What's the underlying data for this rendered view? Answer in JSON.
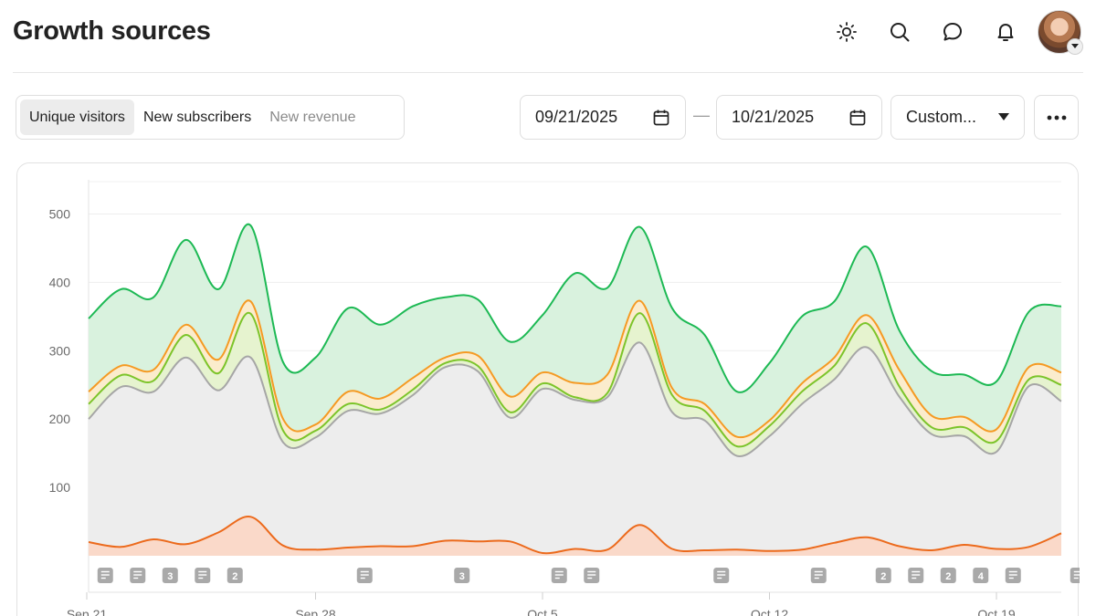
{
  "header": {
    "title": "Growth sources",
    "icons": [
      "sun-icon",
      "search-icon",
      "chat-icon",
      "bell-icon"
    ]
  },
  "tabs": [
    {
      "label": "Unique visitors",
      "state": "active"
    },
    {
      "label": "New subscribers",
      "state": "normal"
    },
    {
      "label": "New revenue",
      "state": "muted"
    }
  ],
  "date_range": {
    "start": "09/21/2025",
    "separator": "—",
    "end": "10/21/2025",
    "preset": "Custom..."
  },
  "chart_data": {
    "type": "area",
    "ylim": [
      0,
      550
    ],
    "yticks": [
      100,
      200,
      300,
      400,
      500
    ],
    "xticks": [
      {
        "label": "Sep 21",
        "day": 0
      },
      {
        "label": "Sep 28",
        "day": 7
      },
      {
        "label": "Oct 5",
        "day": 14
      },
      {
        "label": "Oct 12",
        "day": 21
      },
      {
        "label": "Oct 19",
        "day": 28
      }
    ],
    "days": 30,
    "colors": {
      "top": "#1db954",
      "top_fill": "#d7f1dc",
      "orange": "#f59a23",
      "orange_fill": "#fbeccd",
      "lime": "#7cc42a",
      "gray": "#a6a6a6",
      "gray_fill": "#ededed",
      "bottom": "#ec6a1c",
      "bottom_fill": "#fbd6c4"
    },
    "series": [
      {
        "key": "top",
        "values": [
          347,
          390,
          378,
          462,
          390,
          483,
          283,
          290,
          362,
          338,
          365,
          378,
          375,
          313,
          352,
          413,
          392,
          481,
          362,
          323,
          240,
          282,
          350,
          372,
          452,
          330,
          270,
          265,
          255,
          357,
          365
        ]
      },
      {
        "key": "orange",
        "values": [
          240,
          278,
          272,
          338,
          287,
          372,
          200,
          192,
          240,
          230,
          260,
          290,
          293,
          233,
          268,
          253,
          265,
          373,
          245,
          222,
          174,
          198,
          252,
          290,
          352,
          272,
          205,
          203,
          185,
          276,
          268
        ]
      },
      {
        "key": "lime",
        "values": [
          222,
          264,
          256,
          323,
          267,
          354,
          183,
          183,
          222,
          214,
          243,
          282,
          278,
          210,
          252,
          232,
          238,
          355,
          235,
          212,
          160,
          190,
          240,
          278,
          340,
          248,
          188,
          188,
          168,
          258,
          250
        ]
      },
      {
        "key": "gray",
        "values": [
          200,
          247,
          240,
          290,
          242,
          290,
          166,
          173,
          212,
          208,
          235,
          276,
          270,
          202,
          244,
          228,
          232,
          312,
          210,
          198,
          146,
          175,
          222,
          258,
          305,
          233,
          178,
          175,
          152,
          248,
          226
        ]
      },
      {
        "key": "bottom",
        "values": [
          20,
          13,
          24,
          17,
          34,
          57,
          15,
          9,
          12,
          14,
          14,
          22,
          21,
          21,
          4,
          10,
          9,
          45,
          10,
          8,
          9,
          7,
          9,
          19,
          27,
          14,
          8,
          16,
          10,
          13,
          33
        ]
      }
    ],
    "annotations": [
      {
        "day": 1,
        "label": ""
      },
      {
        "day": 2,
        "label": ""
      },
      {
        "day": 3,
        "label": "3"
      },
      {
        "day": 4,
        "label": ""
      },
      {
        "day": 5,
        "label": "2"
      },
      {
        "day": 9,
        "label": ""
      },
      {
        "day": 12,
        "label": "3"
      },
      {
        "day": 15,
        "label": ""
      },
      {
        "day": 16,
        "label": ""
      },
      {
        "day": 20,
        "label": ""
      },
      {
        "day": 23,
        "label": ""
      },
      {
        "day": 25,
        "label": "2"
      },
      {
        "day": 26,
        "label": ""
      },
      {
        "day": 27,
        "label": "2"
      },
      {
        "day": 28,
        "label": "4"
      },
      {
        "day": 29,
        "label": ""
      },
      {
        "day": 31,
        "label": ""
      }
    ]
  }
}
